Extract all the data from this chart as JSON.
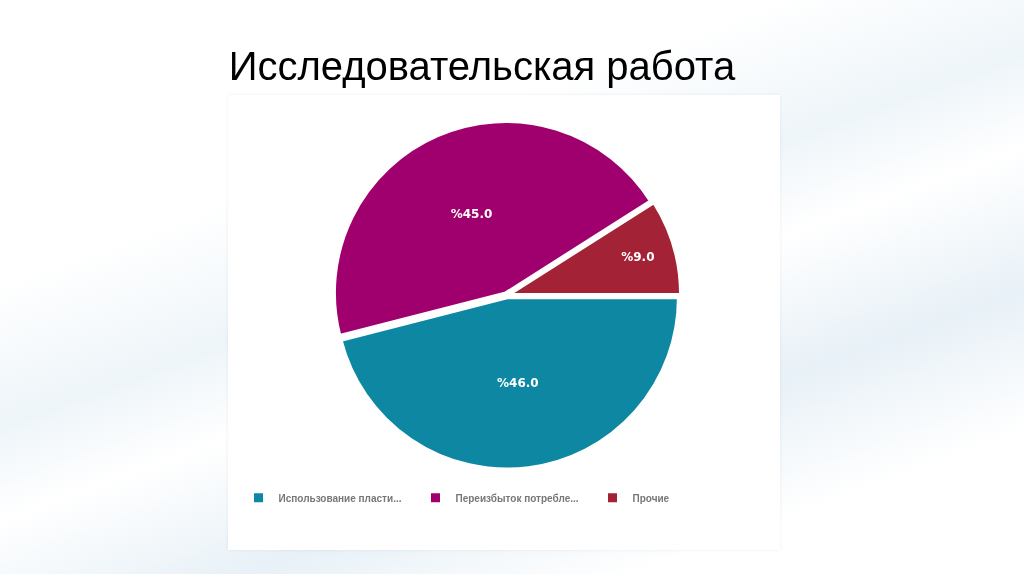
{
  "chart_data": {
    "type": "pie",
    "title": "Исследовательская работа",
    "categories": [
      "Использование пласти...",
      "Переизбыток потребле...",
      "Прочие"
    ],
    "values": [
      46,
      45,
      9
    ],
    "colors": [
      "#0d87a2",
      "#a0006d",
      "#a32236"
    ],
    "value_labels": [
      "%46.0",
      "%45.0",
      "%9.0"
    ],
    "legend": "bottom"
  }
}
